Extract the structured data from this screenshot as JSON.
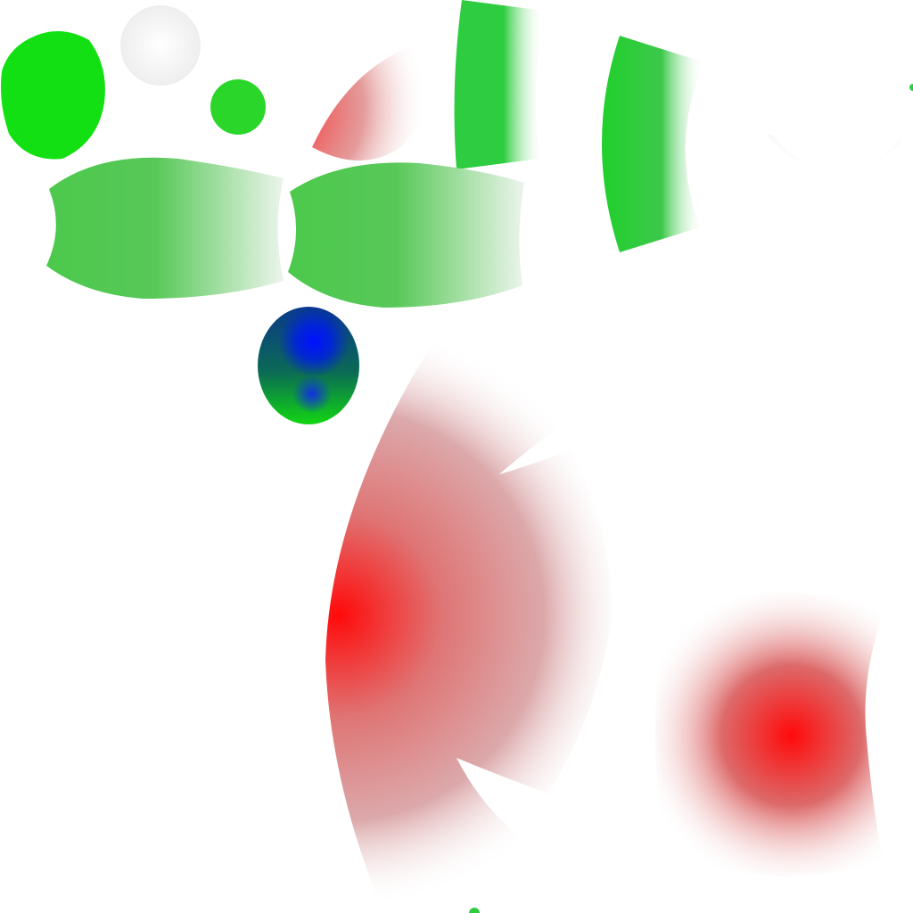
{
  "colors": {
    "background": "#ffffff",
    "green": "#12e012",
    "green_mid": "#2ecc40",
    "green_light": "#4cc94c",
    "red": "#ff0a0a",
    "red_soft": "#d97070",
    "blue": "#0010ff",
    "blue_dark": "#0a4a7a",
    "near_white": "#eeeeee"
  },
  "shapes": [
    {
      "kind": "solid-green-ellipse"
    },
    {
      "kind": "white-radial-circle"
    },
    {
      "kind": "small-green-circle"
    },
    {
      "kind": "pink-gradient-lune"
    },
    {
      "kind": "green-fade-band-top"
    },
    {
      "kind": "green-fade-band-right"
    },
    {
      "kind": "white-glow-top-right"
    },
    {
      "kind": "green-leaf-left"
    },
    {
      "kind": "green-leaf-right"
    },
    {
      "kind": "blue-green-gradient-egg"
    },
    {
      "kind": "large-red-radial-fan"
    },
    {
      "kind": "red-radial-blob-bottom-right"
    }
  ]
}
